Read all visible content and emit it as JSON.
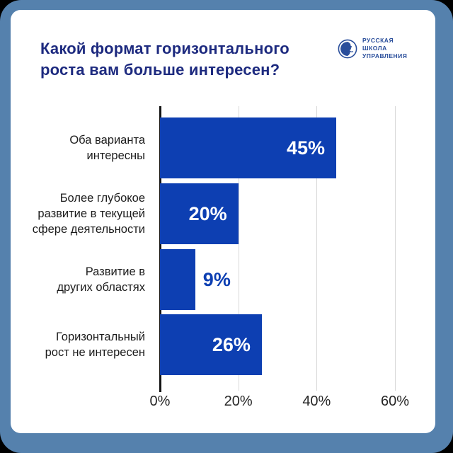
{
  "page": {
    "background": "#000000",
    "frame_color": "#5581AD",
    "card_color": "#FFFFFF"
  },
  "header": {
    "title_lines": [
      "Какой формат горизонтального",
      "роста вам больше интересен?"
    ],
    "title_color": "#1D2A7F"
  },
  "logo": {
    "name": "Русская школа управления",
    "lines": [
      "РУССКАЯ",
      "ШКОЛА",
      "УПРАВЛЕНИЯ"
    ],
    "color": "#2A4E9B",
    "icon": "globe-moon-face"
  },
  "chart_data": {
    "type": "bar",
    "orientation": "horizontal",
    "title": "Какой формат горизонтального роста вам больше интересен?",
    "categories": [
      "Оба варианта интересны",
      "Более глубокое развитие в текущей сфере деятельности",
      "Развитие в других областях",
      "Горизонтальный рост не интересен"
    ],
    "category_lines": [
      [
        "Оба варианта",
        "интересны"
      ],
      [
        "Более глубокое",
        "развитие в текущей",
        "сфере деятельности"
      ],
      [
        "Развитие в",
        "других областях"
      ],
      [
        "Горизонтальный",
        "рост не интересен"
      ]
    ],
    "values": [
      45,
      20,
      9,
      26
    ],
    "value_labels": [
      "45%",
      "20%",
      "9%",
      "26%"
    ],
    "value_label_inside": [
      true,
      true,
      false,
      true
    ],
    "xlim": [
      0,
      60
    ],
    "x_ticks": [
      0,
      20,
      40,
      60
    ],
    "x_tick_labels": [
      "0%",
      "20%",
      "40%",
      "60%"
    ],
    "grid": true,
    "legend": false,
    "bar_color": "#0D3FB2",
    "grid_color": "#D8D8D8",
    "axis_color": "#141414",
    "value_label_color_inside": "#FFFFFF",
    "value_label_color_outside": "#0D3FB2"
  }
}
